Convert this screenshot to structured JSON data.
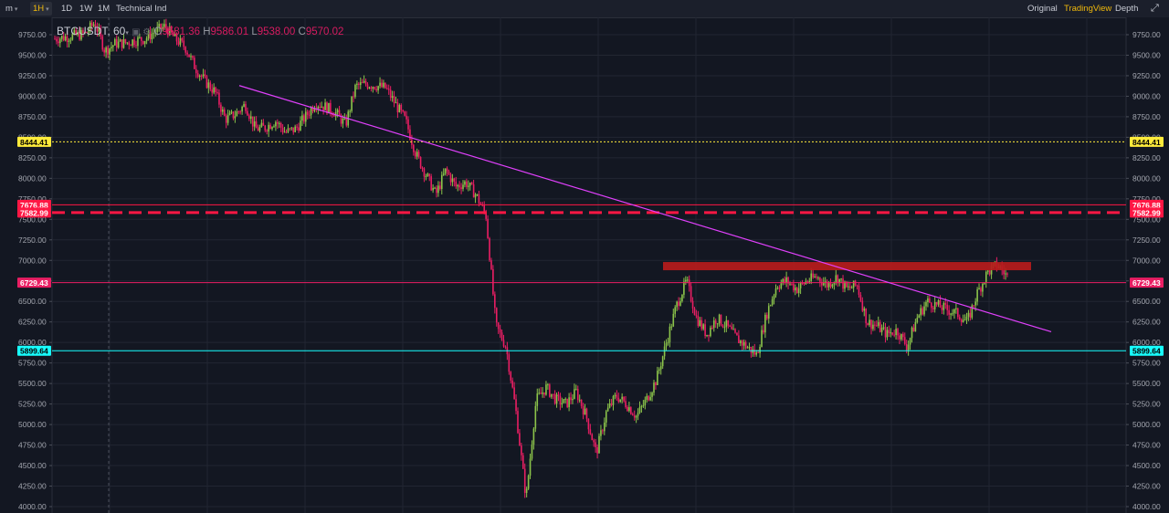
{
  "toolbar": {
    "intervals": [
      {
        "label": "m",
        "dropdown": true
      },
      {
        "label": "1H",
        "dropdown": true,
        "active": true
      },
      {
        "label": "1D"
      },
      {
        "label": "1W"
      },
      {
        "label": "1M"
      },
      {
        "label": "Technical Ind"
      }
    ],
    "views": [
      "Original",
      "TradingView",
      "Depth"
    ],
    "active_view": "TradingView",
    "fullscreen_icon": "expand-icon"
  },
  "legend": {
    "symbol": "BTCUSDT, 60",
    "open_label": "O",
    "open_value": "9581.36",
    "high_label": "H",
    "high_value": "9586.01",
    "low_label": "L",
    "low_value": "9538.00",
    "close_label": "C",
    "close_value": "9570.02"
  },
  "price_axis": [
    "9750.00",
    "9500.00",
    "9250.00",
    "9000.00",
    "8750.00",
    "8500.00",
    "8250.00",
    "8000.00",
    "7750.00",
    "7500.00",
    "7250.00",
    "7000.00",
    "6750.00",
    "6500.00",
    "6250.00",
    "6000.00",
    "5750.00",
    "5500.00",
    "5250.00",
    "5000.00",
    "4750.00",
    "4500.00",
    "4250.00",
    "4000.00"
  ],
  "price_lines": [
    {
      "name": "yellow-level",
      "price": 8444.41,
      "label": "8444.41",
      "color": "#ffeb3b",
      "style": "dotted",
      "label_text_color": "#000000"
    },
    {
      "name": "red-level-upper",
      "price": 7676.88,
      "label": "7676.88",
      "color": "#ff1744",
      "style": "solid",
      "label_text_color": "#ffffff"
    },
    {
      "name": "red-level-dashed",
      "price": 7582.99,
      "label": "7582.99",
      "color": "#ff1744",
      "style": "dashed",
      "label_text_color": "#ffffff"
    },
    {
      "name": "pink-level",
      "price": 6729.43,
      "label": "6729.43",
      "color": "#e91e63",
      "style": "solid",
      "label_text_color": "#ffffff"
    },
    {
      "name": "cyan-level",
      "price": 5899.64,
      "label": "5899.64",
      "color": "#18ffff",
      "style": "solid",
      "label_text_color": "#000000"
    }
  ],
  "colors": {
    "up": "#8bc34a",
    "down": "#e91e63",
    "trendline": "#e040fb",
    "resistance_box": "#b71c1c",
    "background": "#131722",
    "grid": "#222632"
  },
  "chart_data": {
    "type": "candlestick",
    "symbol": "BTCUSDT",
    "interval": "60",
    "ylim": [
      3950,
      9950
    ],
    "grid": true,
    "trendline": {
      "from_price": 9130,
      "to_price": 6130
    },
    "resistance_zone": {
      "low": 6880,
      "high": 6980
    },
    "series": [
      {
        "p": 9700
      },
      {
        "p": 9720
      },
      {
        "p": 9740
      },
      {
        "p": 9760
      },
      {
        "p": 9900
      },
      {
        "p": 9550
      },
      {
        "p": 9640
      },
      {
        "p": 9650
      },
      {
        "p": 9680
      },
      {
        "p": 9700
      },
      {
        "p": 9790
      },
      {
        "p": 9850
      },
      {
        "p": 9700
      },
      {
        "p": 9600
      },
      {
        "p": 9350
      },
      {
        "p": 9180
      },
      {
        "p": 9050
      },
      {
        "p": 8720
      },
      {
        "p": 8780
      },
      {
        "p": 8900
      },
      {
        "p": 8600
      },
      {
        "p": 8620
      },
      {
        "p": 8700
      },
      {
        "p": 8560
      },
      {
        "p": 8600
      },
      {
        "p": 8750
      },
      {
        "p": 8920
      },
      {
        "p": 8870
      },
      {
        "p": 8800
      },
      {
        "p": 8650
      },
      {
        "p": 9120
      },
      {
        "p": 9150
      },
      {
        "p": 9130
      },
      {
        "p": 9100
      },
      {
        "p": 8900
      },
      {
        "p": 8700
      },
      {
        "p": 8300
      },
      {
        "p": 8050
      },
      {
        "p": 7800
      },
      {
        "p": 8100
      },
      {
        "p": 7900
      },
      {
        "p": 7950
      },
      {
        "p": 7800
      },
      {
        "p": 7550
      },
      {
        "p": 6200
      },
      {
        "p": 5950
      },
      {
        "p": 5150
      },
      {
        "p": 4100
      },
      {
        "p": 5300
      },
      {
        "p": 5450
      },
      {
        "p": 5300
      },
      {
        "p": 5250
      },
      {
        "p": 5400
      },
      {
        "p": 5100
      },
      {
        "p": 4650
      },
      {
        "p": 5150
      },
      {
        "p": 5350
      },
      {
        "p": 5250
      },
      {
        "p": 5100
      },
      {
        "p": 5300
      },
      {
        "p": 5550
      },
      {
        "p": 6000
      },
      {
        "p": 6450
      },
      {
        "p": 6750
      },
      {
        "p": 6300
      },
      {
        "p": 6100
      },
      {
        "p": 6300
      },
      {
        "p": 6200
      },
      {
        "p": 6050
      },
      {
        "p": 5950
      },
      {
        "p": 5850
      },
      {
        "p": 6350
      },
      {
        "p": 6700
      },
      {
        "p": 6750
      },
      {
        "p": 6650
      },
      {
        "p": 6750
      },
      {
        "p": 6800
      },
      {
        "p": 6700
      },
      {
        "p": 6800
      },
      {
        "p": 6650
      },
      {
        "p": 6700
      },
      {
        "p": 6250
      },
      {
        "p": 6200
      },
      {
        "p": 6100
      },
      {
        "p": 6150
      },
      {
        "p": 5950
      },
      {
        "p": 6300
      },
      {
        "p": 6500
      },
      {
        "p": 6450
      },
      {
        "p": 6400
      },
      {
        "p": 6350
      },
      {
        "p": 6250
      },
      {
        "p": 6600
      },
      {
        "p": 6850
      },
      {
        "p": 6950
      },
      {
        "p": 6800
      }
    ]
  }
}
